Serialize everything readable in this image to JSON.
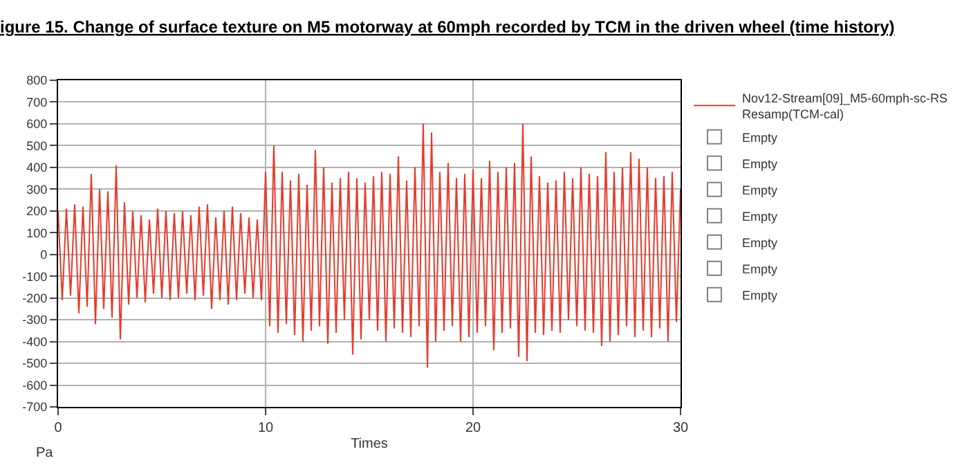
{
  "chart_data": {
    "type": "line",
    "title": "igure 15. Change of surface texture on M5 motorway at 60mph recorded by TCM in the driven wheel (time history)",
    "xlabel": "Times",
    "ylabel": "Pa",
    "xlim": [
      0,
      30
    ],
    "xticks": [
      0,
      10,
      20,
      30
    ],
    "ylim": [
      -700,
      800
    ],
    "yticks": [
      -700,
      -600,
      -500,
      -400,
      -300,
      -200,
      -100,
      0,
      100,
      200,
      300,
      400,
      500,
      600,
      700,
      800
    ],
    "grid": true,
    "legend": "top right",
    "marker": "none",
    "line_style": "solid",
    "series": [
      {
        "name": "Nov12-Stream[09]_M5-60mph-sc-RS Resamp(TCM-cal)",
        "color": "#e8392a",
        "x": [
          0,
          0.2,
          0.4,
          0.6,
          0.8,
          1,
          1.2,
          1.4,
          1.6,
          1.8,
          2,
          2.2,
          2.4,
          2.6,
          2.8,
          3,
          3.2,
          3.4,
          3.6,
          3.8,
          4,
          4.2,
          4.4,
          4.6,
          4.8,
          5,
          5.2,
          5.4,
          5.6,
          5.8,
          6,
          6.2,
          6.4,
          6.6,
          6.8,
          7,
          7.2,
          7.4,
          7.6,
          7.8,
          8,
          8.2,
          8.4,
          8.6,
          8.8,
          9,
          9.2,
          9.4,
          9.6,
          9.8,
          10,
          10.2,
          10.4,
          10.6,
          10.8,
          11,
          11.2,
          11.4,
          11.6,
          11.8,
          12,
          12.2,
          12.4,
          12.6,
          12.8,
          13,
          13.2,
          13.4,
          13.6,
          13.8,
          14,
          14.2,
          14.4,
          14.6,
          14.8,
          15,
          15.2,
          15.4,
          15.6,
          15.8,
          16,
          16.2,
          16.4,
          16.6,
          16.8,
          17,
          17.2,
          17.4,
          17.6,
          17.8,
          18,
          18.2,
          18.4,
          18.6,
          18.8,
          19,
          19.2,
          19.4,
          19.6,
          19.8,
          20,
          20.2,
          20.4,
          20.6,
          20.8,
          21,
          21.2,
          21.4,
          21.6,
          21.8,
          22,
          22.2,
          22.4,
          22.6,
          22.8,
          23,
          23.2,
          23.4,
          23.6,
          23.8,
          24,
          24.2,
          24.4,
          24.6,
          24.8,
          25,
          25.2,
          25.4,
          25.6,
          25.8,
          26,
          26.2,
          26.4,
          26.6,
          26.8,
          27,
          27.2,
          27.4,
          27.6,
          27.8,
          28,
          28.2,
          28.4,
          28.6,
          28.8,
          29,
          29.2,
          29.4,
          29.6,
          29.8,
          30
        ],
        "values": [
          200,
          -210,
          210,
          -190,
          230,
          -270,
          220,
          -240,
          370,
          -320,
          300,
          -250,
          290,
          -290,
          410,
          -390,
          240,
          -230,
          200,
          -200,
          180,
          -220,
          160,
          -180,
          210,
          -200,
          200,
          -210,
          190,
          -200,
          200,
          -180,
          180,
          -210,
          220,
          -190,
          230,
          -250,
          170,
          -210,
          200,
          -230,
          220,
          -210,
          190,
          -180,
          170,
          -200,
          160,
          -210,
          380,
          -330,
          500,
          -360,
          380,
          -320,
          340,
          -370,
          370,
          -400,
          320,
          -350,
          480,
          -330,
          400,
          -410,
          330,
          -360,
          350,
          -300,
          380,
          -460,
          350,
          -390,
          330,
          -300,
          360,
          -350,
          380,
          -400,
          370,
          -340,
          450,
          -360,
          340,
          -380,
          400,
          -330,
          600,
          -520,
          560,
          -400,
          380,
          -350,
          420,
          -330,
          350,
          -400,
          370,
          -380,
          390,
          -360,
          350,
          -330,
          430,
          -440,
          380,
          -360,
          400,
          -340,
          420,
          -470,
          600,
          -490,
          450,
          -360,
          360,
          -370,
          330,
          -350,
          340,
          -360,
          380,
          -300,
          350,
          -330,
          400,
          -350,
          370,
          -360,
          360,
          -420,
          470,
          -400,
          380,
          -370,
          400,
          -330,
          470,
          -380,
          440,
          -350,
          400,
          -380,
          350,
          -340,
          360,
          -400,
          380,
          -310,
          300
        ]
      },
      {
        "name": "Empty",
        "color": "#808080"
      },
      {
        "name": "Empty",
        "color": "#808080"
      },
      {
        "name": "Empty",
        "color": "#808080"
      },
      {
        "name": "Empty",
        "color": "#808080"
      },
      {
        "name": "Empty",
        "color": "#808080"
      },
      {
        "name": "Empty",
        "color": "#808080"
      },
      {
        "name": "Empty",
        "color": "#808080"
      }
    ]
  }
}
